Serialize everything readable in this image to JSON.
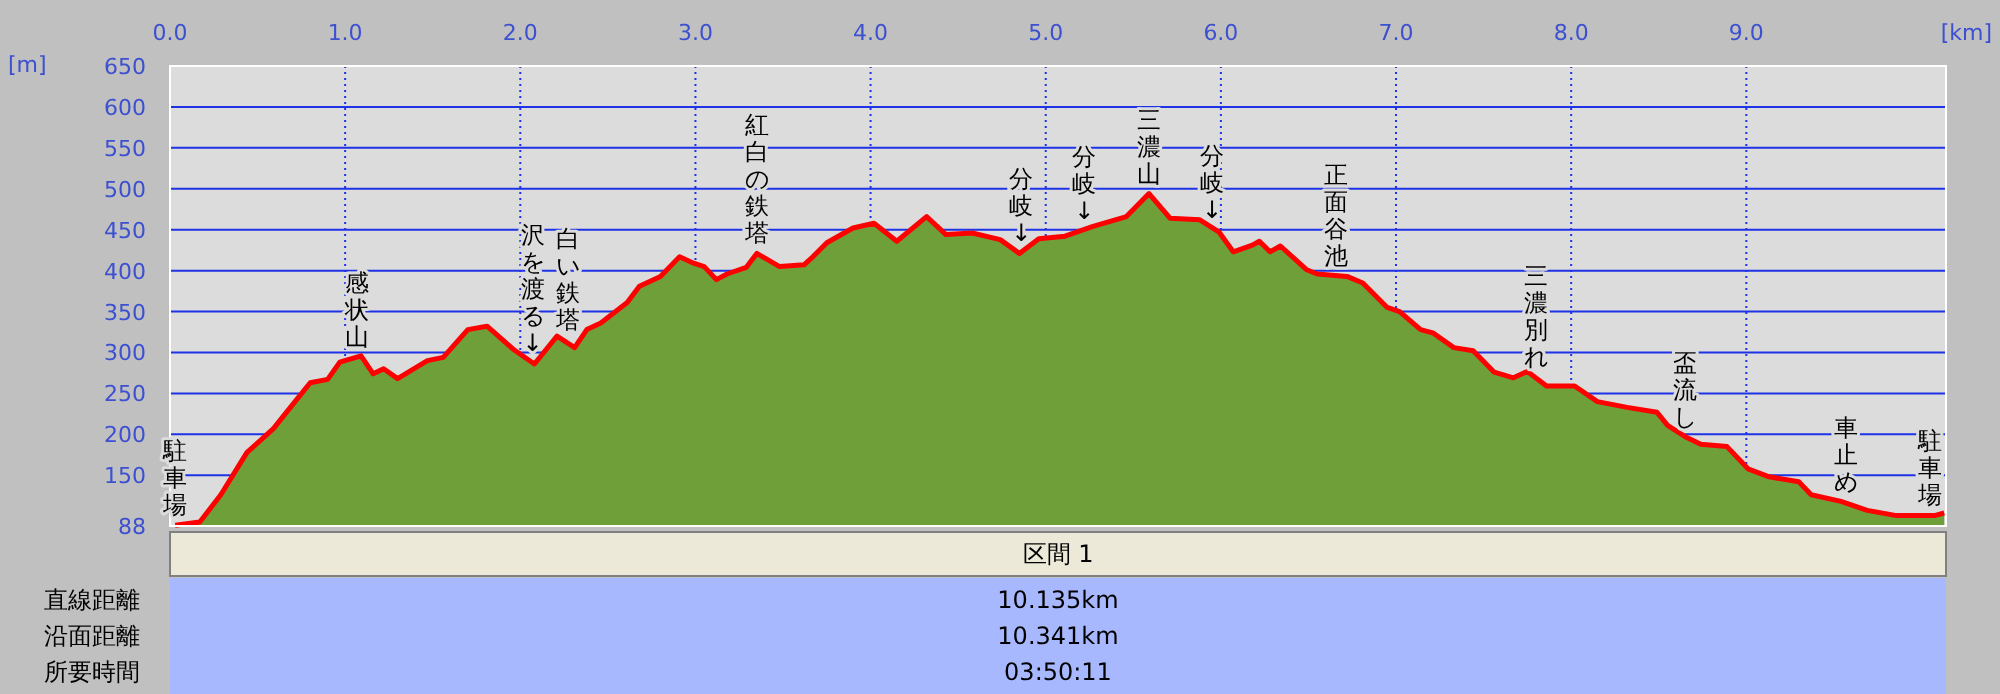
{
  "chart_data": {
    "type": "area",
    "xlabel": "[km]",
    "ylabel": "[m]",
    "xlim": [
      0,
      10.14
    ],
    "ylim": [
      88,
      650
    ],
    "xticks": [
      {
        "value": 0,
        "label": "0.0"
      },
      {
        "value": 1,
        "label": "1.0"
      },
      {
        "value": 2,
        "label": "2.0"
      },
      {
        "value": 3,
        "label": "3.0"
      },
      {
        "value": 4,
        "label": "4.0"
      },
      {
        "value": 5,
        "label": "5.0"
      },
      {
        "value": 6,
        "label": "6.0"
      },
      {
        "value": 7,
        "label": "7.0"
      },
      {
        "value": 8,
        "label": "8.0"
      },
      {
        "value": 9,
        "label": "9.0"
      }
    ],
    "yticks": [
      88,
      150,
      200,
      250,
      300,
      350,
      400,
      450,
      500,
      550,
      600,
      650
    ],
    "grid": true,
    "x": [
      0.03,
      0.17,
      0.29,
      0.44,
      0.59,
      0.71,
      0.8,
      0.9,
      0.97,
      1.09,
      1.16,
      1.22,
      1.3,
      1.47,
      1.56,
      1.7,
      1.81,
      1.96,
      2.08,
      2.21,
      2.31,
      2.38,
      2.46,
      2.61,
      2.68,
      2.8,
      2.91,
      2.99,
      3.05,
      3.12,
      3.18,
      3.29,
      3.35,
      3.48,
      3.62,
      3.67,
      3.75,
      3.9,
      4.02,
      4.15,
      4.32,
      4.43,
      4.58,
      4.74,
      4.85,
      4.96,
      5.11,
      5.27,
      5.46,
      5.59,
      5.71,
      5.88,
      5.99,
      6.07,
      6.18,
      6.22,
      6.28,
      6.34,
      6.49,
      6.55,
      6.72,
      6.81,
      6.95,
      7.02,
      7.14,
      7.21,
      7.33,
      7.44,
      7.56,
      7.67,
      7.75,
      7.86,
      8.02,
      8.15,
      8.32,
      8.49,
      8.55,
      8.66,
      8.74,
      8.89,
      9.01,
      9.13,
      9.3,
      9.37,
      9.54,
      9.69,
      9.85,
      10.08,
      10.13
    ],
    "series": [
      {
        "color": "#6f9f38",
        "values": [
          89,
          93,
          126,
          178,
          207,
          239,
          263,
          267,
          288,
          296,
          274,
          280,
          268,
          290,
          294,
          328,
          332,
          304,
          286,
          320,
          306,
          328,
          336,
          361,
          381,
          393,
          417,
          409,
          405,
          389,
          396,
          404,
          421,
          405,
          407,
          417,
          434,
          452,
          458,
          436,
          466,
          444,
          446,
          438,
          421,
          439,
          442,
          454,
          466,
          494,
          464,
          462,
          447,
          423,
          431,
          436,
          423,
          430,
          401,
          396,
          393,
          385,
          355,
          350,
          328,
          324,
          306,
          302,
          276,
          269,
          277,
          259,
          259,
          240,
          233,
          227,
          211,
          196,
          188,
          185,
          158,
          148,
          142,
          126,
          118,
          107,
          101,
          101,
          104
        ]
      }
    ],
    "annotations": [
      {
        "text": "駐車場",
        "x": 0.03,
        "y": 89
      },
      {
        "text": "感状山",
        "x": 1.07,
        "y": 295
      },
      {
        "text": "沢を渡る↓",
        "x": 2.07,
        "y": 287
      },
      {
        "text": "白い鉄塔",
        "x": 2.27,
        "y": 315
      },
      {
        "text": "紅白の鉄塔",
        "x": 3.35,
        "y": 421
      },
      {
        "text": "分岐↓",
        "x": 4.86,
        "y": 421
      },
      {
        "text": "分岐↓",
        "x": 5.22,
        "y": 448
      },
      {
        "text": "三濃山",
        "x": 5.59,
        "y": 494
      },
      {
        "text": "分岐↓",
        "x": 5.95,
        "y": 450
      },
      {
        "text": "正面谷池",
        "x": 6.66,
        "y": 394
      },
      {
        "text": "三濃別れ",
        "x": 7.8,
        "y": 270
      },
      {
        "text": "盃流し",
        "x": 8.65,
        "y": 197
      },
      {
        "text": "車止め",
        "x": 9.57,
        "y": 117
      },
      {
        "text": "駐車場",
        "x": 10.05,
        "y": 101
      },
      "区間 1",
      "直線距離",
      "10.135km",
      "沿面距離",
      "10.341km",
      "所要時間",
      "03:50:11"
    ]
  }
}
